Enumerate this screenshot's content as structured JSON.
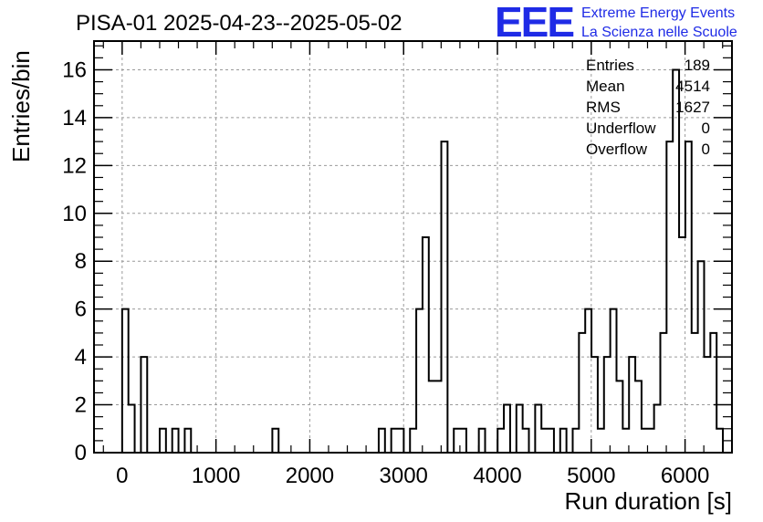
{
  "title": "PISA-01 2025-04-23--2025-05-02",
  "logo": {
    "mark": "EEE",
    "line1": "Extreme Energy Events",
    "line2": "La Scienza nelle Scuole"
  },
  "stats": [
    {
      "label": "Entries",
      "value": "189"
    },
    {
      "label": "Mean",
      "value": "4514"
    },
    {
      "label": "RMS",
      "value": "1627"
    },
    {
      "label": "Underflow",
      "value": "0"
    },
    {
      "label": "Overflow",
      "value": "0"
    }
  ],
  "chart_data": {
    "type": "histogram",
    "xlabel": "Run duration [s]",
    "ylabel": "Entries/bin",
    "xlim": [
      -300,
      6500
    ],
    "ylim": [
      0,
      17.2
    ],
    "xticks": [
      0,
      1000,
      2000,
      3000,
      4000,
      5000,
      6000
    ],
    "yticks": [
      0,
      2,
      4,
      6,
      8,
      10,
      12,
      14,
      16
    ],
    "grid": true,
    "bin_width": 66.7,
    "bin_start": 0,
    "counts": [
      6,
      2,
      0,
      4,
      0,
      0,
      1,
      0,
      1,
      0,
      1,
      0,
      0,
      0,
      0,
      0,
      0,
      0,
      0,
      0,
      0,
      0,
      0,
      0,
      1,
      0,
      0,
      0,
      0,
      0,
      0,
      0,
      0,
      0,
      0,
      0,
      0,
      0,
      0,
      0,
      0,
      1,
      0,
      1,
      1,
      0,
      1,
      6,
      9,
      3,
      3,
      13,
      0,
      1,
      1,
      0,
      0,
      1,
      0,
      0,
      1,
      2,
      0,
      2,
      1,
      0,
      2,
      1,
      1,
      0,
      1,
      0,
      1,
      5,
      6,
      4,
      1,
      4,
      6,
      3,
      1,
      4,
      3,
      1,
      1,
      2,
      5,
      13,
      16,
      9,
      13,
      5,
      8,
      4,
      5,
      1
    ]
  }
}
